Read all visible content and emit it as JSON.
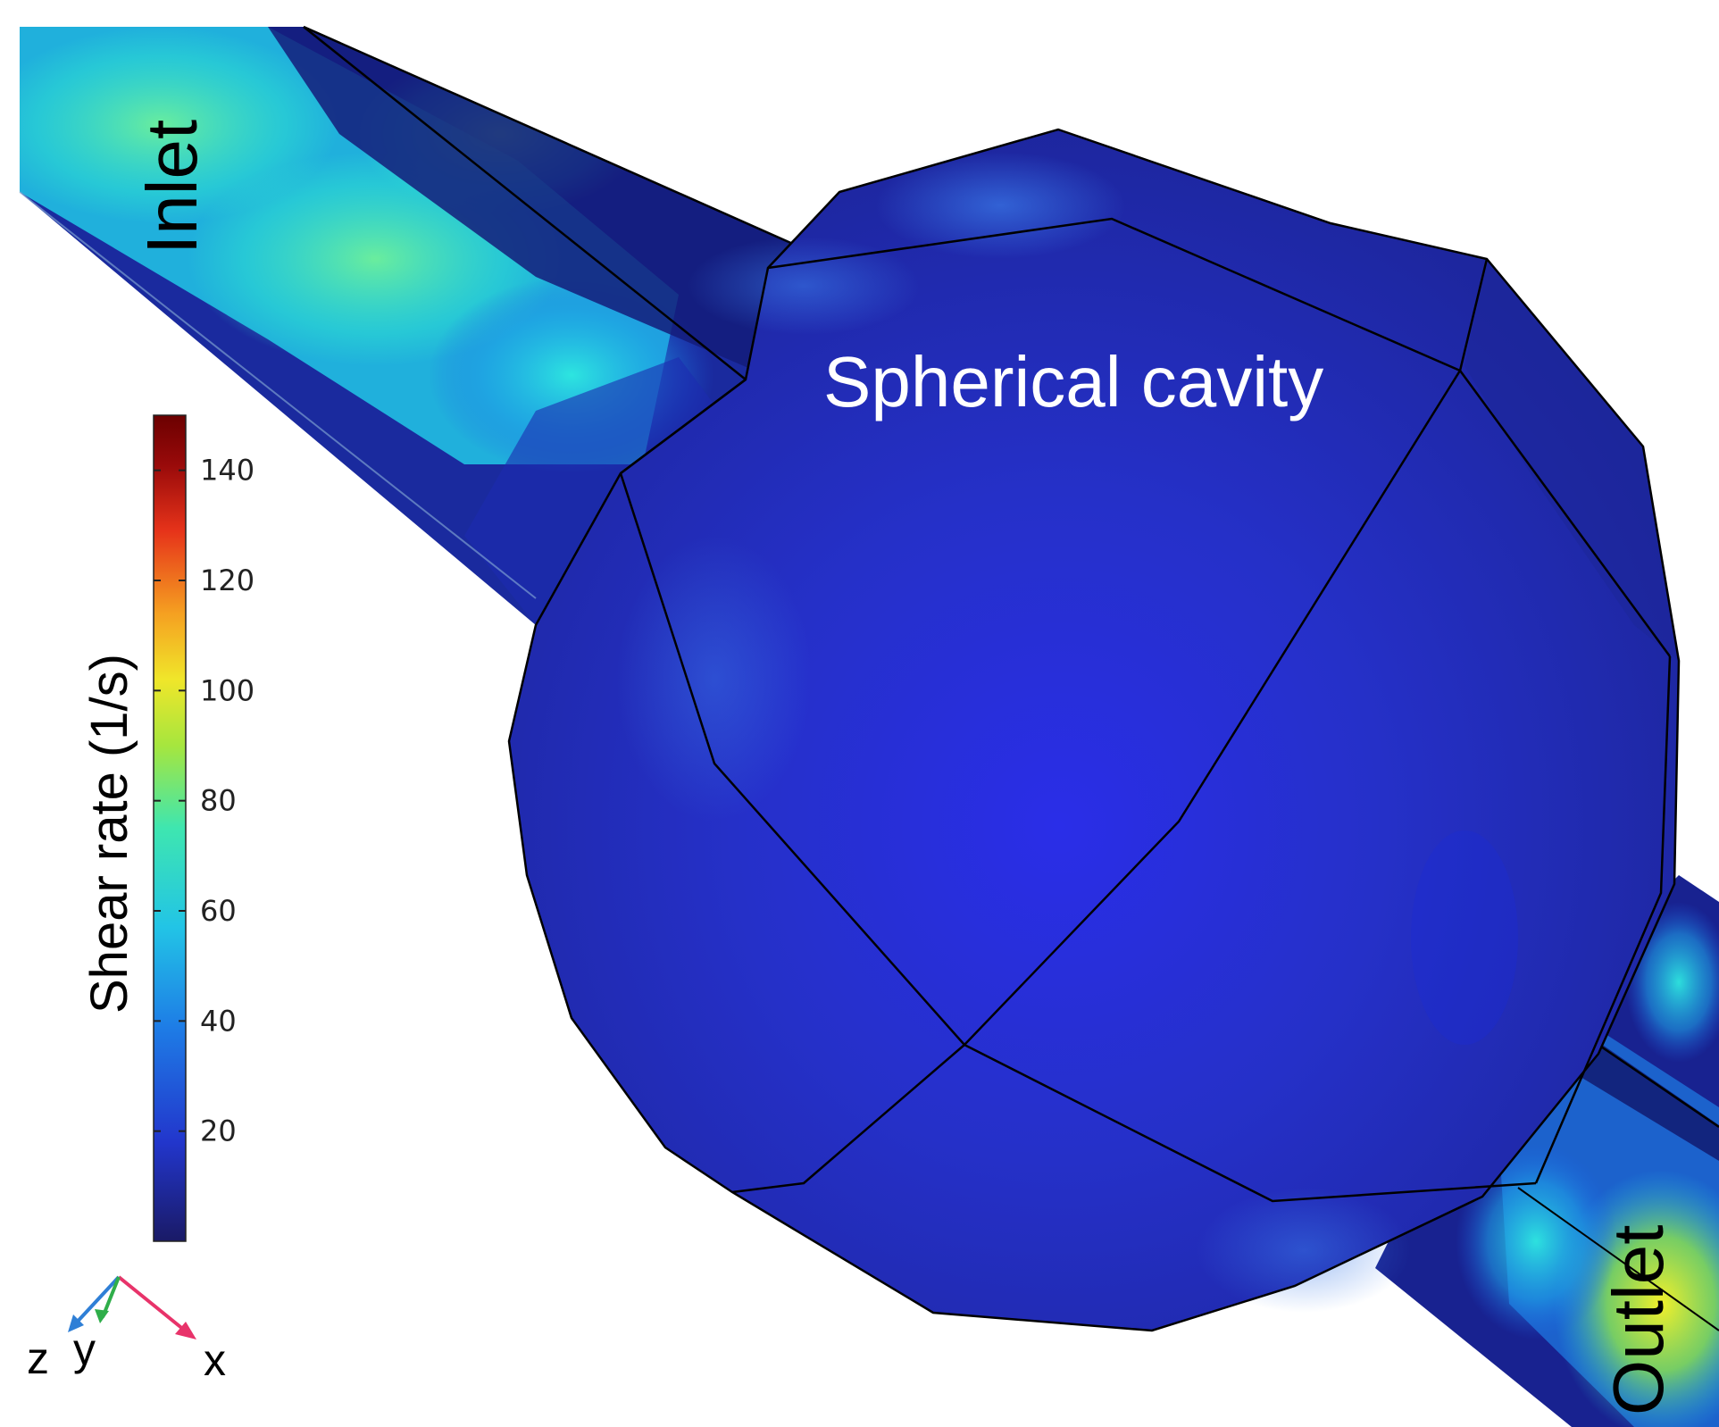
{
  "labels": {
    "inlet": "Inlet",
    "outlet": "Outlet",
    "cavity": "Spherical cavity"
  },
  "colorbar": {
    "title": "Shear rate (1/s)",
    "min": 0,
    "max": 150,
    "ticks": [
      "20",
      "40",
      "60",
      "80",
      "100",
      "120",
      "140"
    ],
    "colormap": [
      "#1a1a66",
      "#2236cc",
      "#1e7de6",
      "#22c4e6",
      "#3ee6b0",
      "#a6e63e",
      "#f0e62a",
      "#f5a021",
      "#e6331a",
      "#990a0a",
      "#6b0000"
    ]
  },
  "axes_triad": {
    "x": "x",
    "y": "y",
    "z": "z",
    "colors": {
      "x": "#e8336a",
      "y": "#2fae4a",
      "z": "#2f7fd6"
    }
  },
  "colors": {
    "channel_dark": "#141a72",
    "cavity_blue": "#2430c4",
    "high_shear_cyan": "#22e6e6",
    "high_shear_green": "#5ef0a0",
    "outlet_yellow": "#e8f02a"
  }
}
